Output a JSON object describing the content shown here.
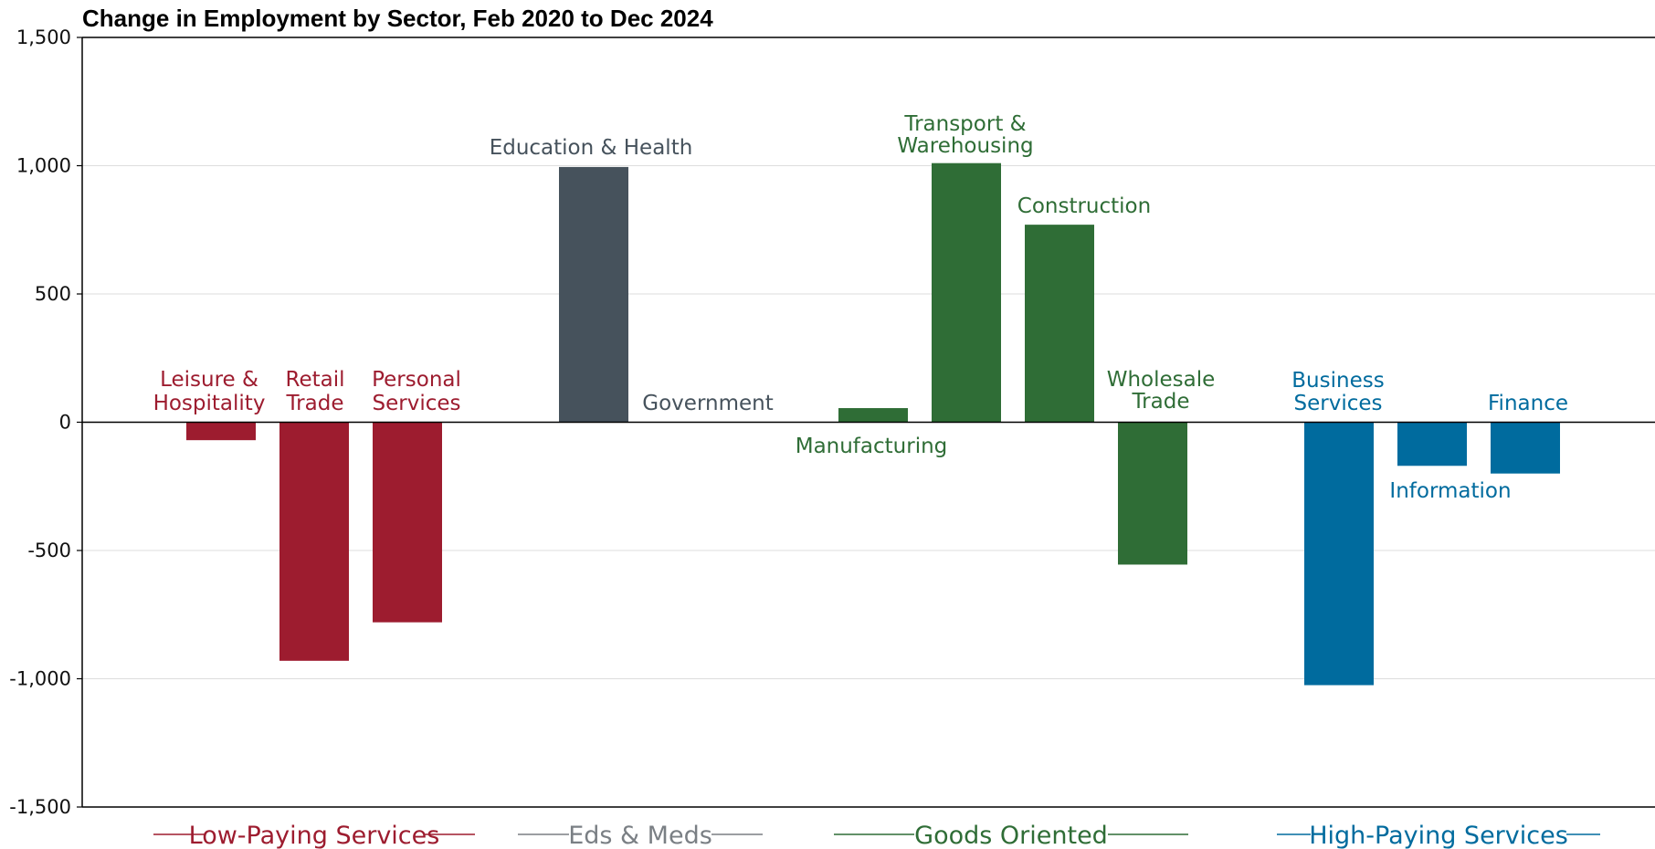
{
  "chart_data": {
    "type": "bar",
    "title": "Change in Employment by Sector, Feb 2020 to Dec 2024",
    "xlabel": "",
    "ylabel": "",
    "ylim": [
      -1500,
      1500
    ],
    "yticks": [
      1500,
      1000,
      500,
      0,
      -500,
      -1000,
      -1500
    ],
    "ytick_labels": [
      "1,500",
      "1,000",
      "500",
      "0",
      "-500",
      "-1,000",
      "-1,500"
    ],
    "grid": "horizontal",
    "colors": {
      "low": "#9d1c2f",
      "eds": "#46525c",
      "goods": "#2f6d36",
      "high": "#006b9e",
      "eds_legend": "#7a7f84"
    },
    "categories": [
      "Leisure & Hospitality",
      "Retail Trade",
      "Personal Services",
      "Education & Health",
      "Government",
      "Manufacturing",
      "Transport & Warehousing",
      "Construction",
      "Wholesale Trade",
      "Business Services",
      "Information",
      "Finance"
    ],
    "bars": [
      {
        "label": [
          "Leisure &",
          "Hospitality"
        ],
        "value": -70,
        "group": "low"
      },
      {
        "label": [
          "Retail",
          "Trade"
        ],
        "value": -930,
        "group": "low"
      },
      {
        "label": [
          "Personal",
          "Services"
        ],
        "value": -780,
        "group": "low"
      },
      {
        "label": [
          "Education & Health"
        ],
        "value": 995,
        "group": "eds"
      },
      {
        "label": [
          "Government"
        ],
        "value": 0,
        "group": "eds"
      },
      {
        "label": [
          "Manufacturing"
        ],
        "value": 55,
        "group": "goods"
      },
      {
        "label": [
          "Transport &",
          "Warehousing"
        ],
        "value": 1010,
        "group": "goods"
      },
      {
        "label": [
          "Construction"
        ],
        "value": 770,
        "group": "goods"
      },
      {
        "label": [
          "Wholesale",
          "Trade"
        ],
        "value": -555,
        "group": "goods"
      },
      {
        "label": [
          "Business",
          "Services"
        ],
        "value": -1025,
        "group": "high"
      },
      {
        "label": [
          "Information"
        ],
        "value": -170,
        "group": "high"
      },
      {
        "label": [
          "Finance"
        ],
        "value": -200,
        "group": "high"
      }
    ],
    "groups": [
      {
        "key": "low",
        "name": "Low-Paying Services"
      },
      {
        "key": "eds",
        "name": "Eds & Meds"
      },
      {
        "key": "goods",
        "name": "Goods Oriented"
      },
      {
        "key": "high",
        "name": "High-Paying Services"
      }
    ]
  }
}
